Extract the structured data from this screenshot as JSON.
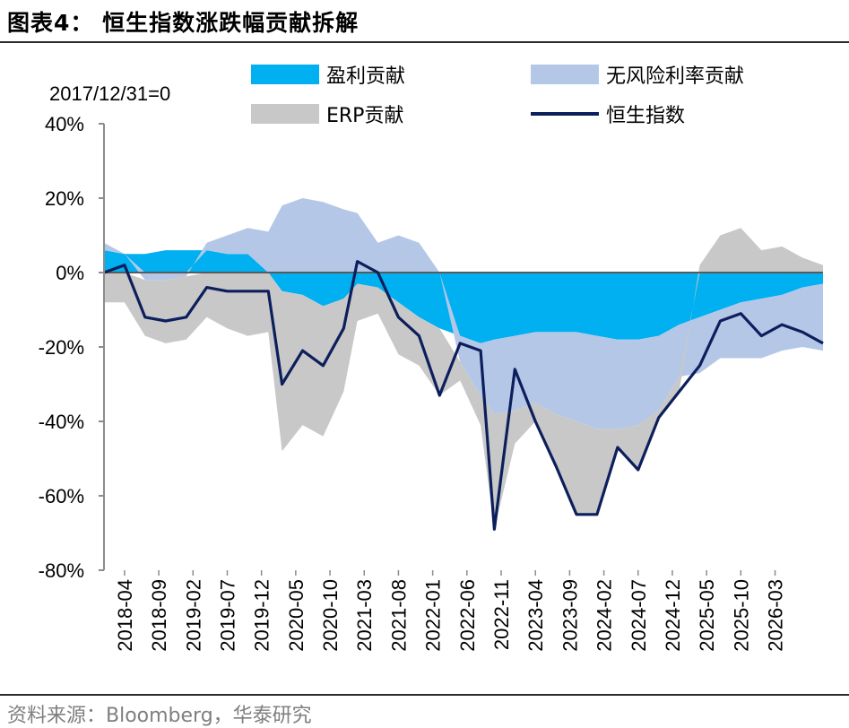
{
  "header": {
    "title": "图表4：  恒生指数涨跌幅贡献拆解"
  },
  "footer": {
    "source": "资料来源：Bloomberg，华泰研究"
  },
  "chart_data": {
    "type": "area",
    "title": "图表4：  恒生指数涨跌幅贡献拆解",
    "annotation": "2017/12/31=0",
    "xlabel": "",
    "ylabel": "",
    "ylim": [
      -0.8,
      0.4
    ],
    "yticks": [
      "40%",
      "20%",
      "0%",
      "-20%",
      "-40%",
      "-60%",
      "-80%"
    ],
    "ytick_values": [
      0.4,
      0.2,
      0.0,
      -0.2,
      -0.4,
      -0.6,
      -0.8
    ],
    "xticks": [
      "2018-04",
      "2018-09",
      "2019-02",
      "2019-07",
      "2019-12",
      "2020-05",
      "2020-10",
      "2021-03",
      "2021-08",
      "2022-01",
      "2022-06",
      "2022-11",
      "2023-04",
      "2023-09",
      "2024-02",
      "2024-07",
      "2024-12",
      "2025-05",
      "2025-10",
      "2026-03"
    ],
    "x_range": [
      "2018-01",
      "2026-10"
    ],
    "grid": false,
    "legend_position": "top",
    "colors": {
      "earnings": "#00b0f0",
      "riskfree": "#b4c7e7",
      "erp": "#c8c8c8",
      "index": "#0c1f5c"
    },
    "x": [
      "2018-01",
      "2018-04",
      "2018-07",
      "2018-10",
      "2019-01",
      "2019-04",
      "2019-07",
      "2019-10",
      "2020-01",
      "2020-03",
      "2020-06",
      "2020-09",
      "2020-12",
      "2021-02",
      "2021-05",
      "2021-08",
      "2021-11",
      "2022-02",
      "2022-05",
      "2022-08",
      "2022-10",
      "2023-01",
      "2023-04",
      "2023-07",
      "2023-10",
      "2024-01",
      "2024-04",
      "2024-07",
      "2024-10",
      "2025-01",
      "2025-04",
      "2025-07",
      "2025-10",
      "2026-01",
      "2026-04",
      "2026-07",
      "2026-10"
    ],
    "series": [
      {
        "name": "盈利贡献",
        "values": [
          0.06,
          0.05,
          0.05,
          0.06,
          0.06,
          0.06,
          0.05,
          0.05,
          0.0,
          -0.05,
          -0.06,
          -0.09,
          -0.07,
          -0.03,
          -0.04,
          -0.08,
          -0.12,
          -0.15,
          -0.17,
          -0.19,
          -0.18,
          -0.17,
          -0.16,
          -0.16,
          -0.16,
          -0.17,
          -0.18,
          -0.18,
          -0.17,
          -0.14,
          -0.12,
          -0.1,
          -0.08,
          -0.07,
          -0.06,
          -0.04,
          -0.03
        ]
      },
      {
        "name": "无风险利率贡献",
        "values": [
          0.02,
          0.0,
          -0.02,
          -0.02,
          -0.01,
          0.02,
          0.05,
          0.07,
          0.11,
          0.18,
          0.2,
          0.19,
          0.17,
          0.16,
          0.08,
          0.1,
          0.08,
          0.0,
          -0.07,
          -0.14,
          -0.2,
          -0.2,
          -0.19,
          -0.22,
          -0.24,
          -0.25,
          -0.24,
          -0.23,
          -0.2,
          -0.14,
          -0.15,
          -0.13,
          -0.15,
          -0.16,
          -0.15,
          -0.16,
          -0.18
        ]
      },
      {
        "name": "ERP贡献",
        "values": [
          -0.08,
          -0.08,
          -0.15,
          -0.17,
          -0.17,
          -0.12,
          -0.15,
          -0.17,
          -0.16,
          -0.43,
          -0.35,
          -0.35,
          -0.25,
          -0.1,
          -0.07,
          -0.14,
          -0.13,
          -0.18,
          -0.05,
          -0.08,
          -0.31,
          -0.09,
          -0.05,
          -0.14,
          -0.25,
          -0.23,
          -0.05,
          -0.12,
          -0.02,
          -0.04,
          0.02,
          0.1,
          0.12,
          0.06,
          0.07,
          0.04,
          0.02
        ]
      },
      {
        "name": "恒生指数",
        "values": [
          0.0,
          0.02,
          -0.12,
          -0.13,
          -0.12,
          -0.04,
          -0.05,
          -0.05,
          -0.05,
          -0.3,
          -0.21,
          -0.25,
          -0.15,
          0.03,
          0.0,
          -0.12,
          -0.17,
          -0.33,
          -0.19,
          -0.21,
          -0.69,
          -0.26,
          -0.4,
          -0.52,
          -0.65,
          -0.65,
          -0.47,
          -0.53,
          -0.39,
          -0.32,
          -0.25,
          -0.13,
          -0.11,
          -0.17,
          -0.14,
          -0.16,
          -0.19
        ]
      }
    ]
  }
}
